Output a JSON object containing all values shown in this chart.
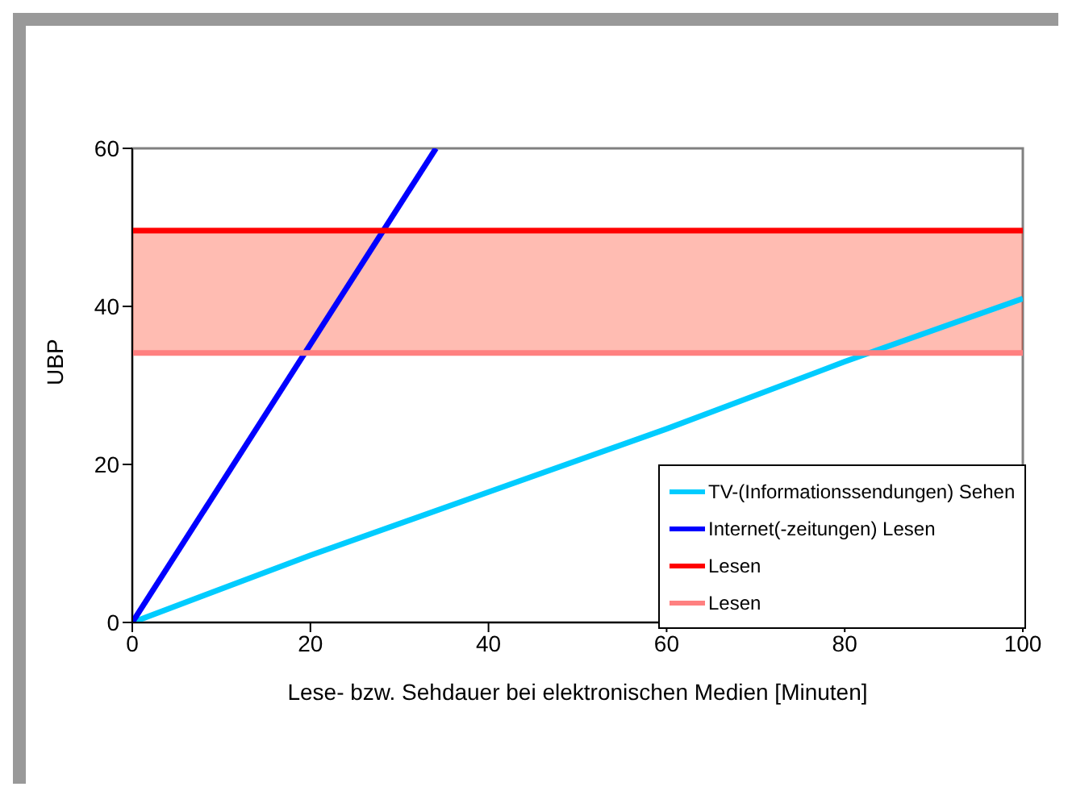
{
  "chart_data": {
    "type": "line",
    "xlabel": "Lese- bzw. Sehdauer bei elektronischen Medien [Minuten]",
    "ylabel": "UBP",
    "xlim": [
      0,
      100
    ],
    "xticks": [
      0,
      20,
      40,
      60,
      80,
      100
    ],
    "ylim": [
      0,
      60
    ],
    "yticks": [
      0,
      20,
      40,
      60
    ],
    "grid": false,
    "legend": "bottom right",
    "marker": "none",
    "line_style": "solid",
    "series": [
      {
        "name": "TV-(Informationssendungen) Sehen",
        "color": "#00ccff",
        "x": [
          0,
          20,
          40,
          60,
          80,
          100
        ],
        "values": [
          0,
          8.5,
          16.5,
          24.5,
          33,
          41
        ]
      },
      {
        "name": "Internet(-zeitungen) Lesen",
        "color": "#0000ff",
        "x": [
          0,
          34.1
        ],
        "values": [
          0,
          60
        ]
      },
      {
        "name": "Lesen",
        "color": "#ff0000",
        "x": [
          0,
          100
        ],
        "values": [
          49.6,
          49.6
        ]
      },
      {
        "name": "Lesen",
        "color": "#ff8080",
        "x": [
          0,
          100
        ],
        "values": [
          34.1,
          34.1
        ]
      }
    ],
    "bands": [
      {
        "axis": "y",
        "from": 34.1,
        "to": 49.6,
        "color": "#ff2000"
      }
    ]
  }
}
